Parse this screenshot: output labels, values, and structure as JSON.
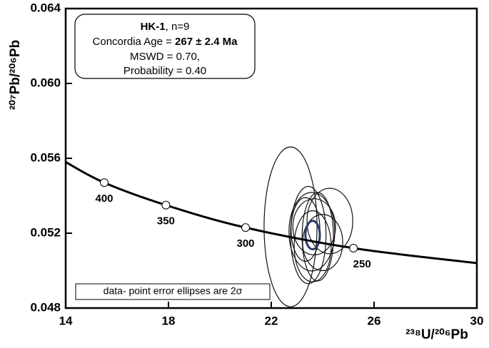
{
  "chart_data": {
    "type": "concordia",
    "x_label": "²³⁸U/²⁰⁶Pb",
    "y_label": "²⁰⁷Pb/²⁰⁶Pb",
    "xlim": [
      14,
      30
    ],
    "xticks": [
      14,
      18,
      22,
      26,
      30
    ],
    "ylim": [
      0.048,
      0.064
    ],
    "yticks": [
      0.048,
      0.052,
      0.056,
      {
        "value": 0.06,
        "label": "0.060"
      },
      0.064
    ],
    "concordia": {
      "x": [
        14,
        15.5,
        17.9,
        21.0,
        25.2,
        30
      ],
      "y": [
        0.0558,
        0.0547,
        0.0535,
        0.0523,
        0.0512,
        0.0504
      ],
      "color": "#000000"
    },
    "age_markers": {
      "labels": [
        "400",
        "350",
        "300",
        "250"
      ],
      "x": [
        15.5,
        17.9,
        21.0,
        25.2
      ],
      "y": [
        0.0547,
        0.0535,
        0.0523,
        0.0512
      ]
    },
    "ellipses": {
      "color": "#111111",
      "x": [
        22.75,
        24.28,
        23.58,
        23.44,
        23.81,
        23.67,
        23.33,
        24.0,
        23.61
      ],
      "y": [
        0.05234,
        0.05265,
        0.05208,
        0.0519,
        0.05181,
        0.05234,
        0.0522,
        0.0515,
        0.0513
      ],
      "x_err": [
        1.03,
        0.89,
        0.89,
        0.69,
        0.61,
        0.83,
        0.56,
        0.78,
        0.72
      ],
      "y_err": [
        0.00427,
        0.00175,
        0.0021,
        0.0026,
        0.00236,
        0.0015,
        0.0017,
        0.0015,
        0.0019
      ]
    },
    "concordia_age_ellipse": {
      "x": 23.61,
      "y": 0.0519,
      "x_err": 0.28,
      "y_err": 0.00076,
      "color": "#2b3a6b"
    },
    "annotation": {
      "sample": "HK-1",
      "n": ", n=9",
      "age_label": "Concordia Age = ",
      "age": "267 ± 2.4 Ma",
      "mswd": "MSWD = 0.70,",
      "probability": "Probability = 0.40"
    },
    "note": "data- point error ellipses are 2σ"
  }
}
